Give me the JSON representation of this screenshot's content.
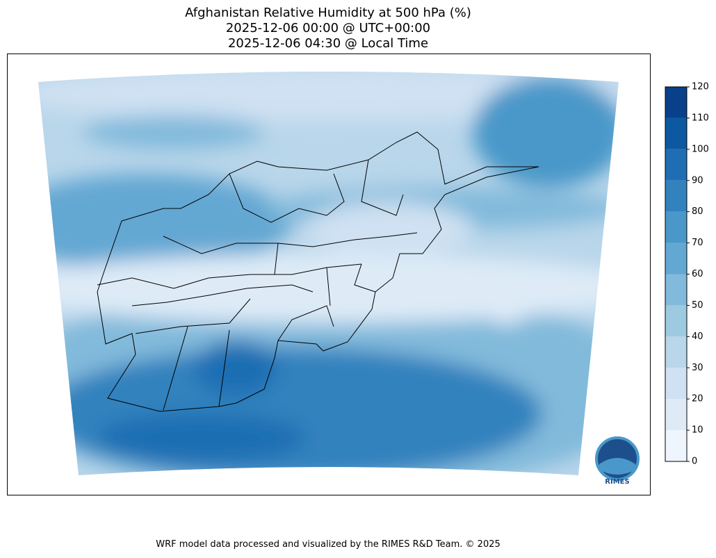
{
  "title": [
    "Afghanistan Relative Humidity at 500 hPa (%)",
    "2025-12-06 00:00 @ UTC+00:00",
    "2025-12-06 04:30 @ Local Time"
  ],
  "colorbar": {
    "levels": [
      0,
      10,
      20,
      30,
      40,
      50,
      60,
      70,
      80,
      90,
      100,
      110,
      120
    ],
    "colors": [
      "#eff5fc",
      "#deebf7",
      "#cfe1f2",
      "#b9d6ea",
      "#9ecae1",
      "#82badb",
      "#63a7d3",
      "#4a98c9",
      "#3282be",
      "#1f6eb3",
      "#0c58a1",
      "#08408a"
    ]
  },
  "logo": "RIMES",
  "footer": "WRF model data processed and visualized by the RIMES R&D Team. © 2025"
}
